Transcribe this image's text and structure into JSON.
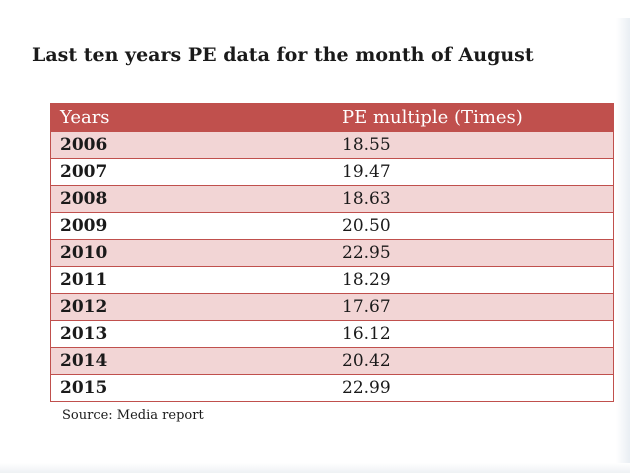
{
  "chart_data": {
    "type": "table",
    "title": "Last ten years PE data for the month of August",
    "columns": [
      "Years",
      "PE multiple (Times)"
    ],
    "rows": [
      {
        "year": "2006",
        "pe": "18.55"
      },
      {
        "year": "2007",
        "pe": "19.47"
      },
      {
        "year": "2008",
        "pe": "18.63"
      },
      {
        "year": "2009",
        "pe": "20.50"
      },
      {
        "year": "2010",
        "pe": "22.95"
      },
      {
        "year": "2011",
        "pe": "18.29"
      },
      {
        "year": "2012",
        "pe": "17.67"
      },
      {
        "year": "2013",
        "pe": "16.12"
      },
      {
        "year": "2014",
        "pe": "20.42"
      },
      {
        "year": "2015",
        "pe": "22.99"
      }
    ],
    "source": "Source: Media report"
  },
  "colors": {
    "header_background": "#c0504d",
    "stripe_background": "#f2d5d5"
  }
}
